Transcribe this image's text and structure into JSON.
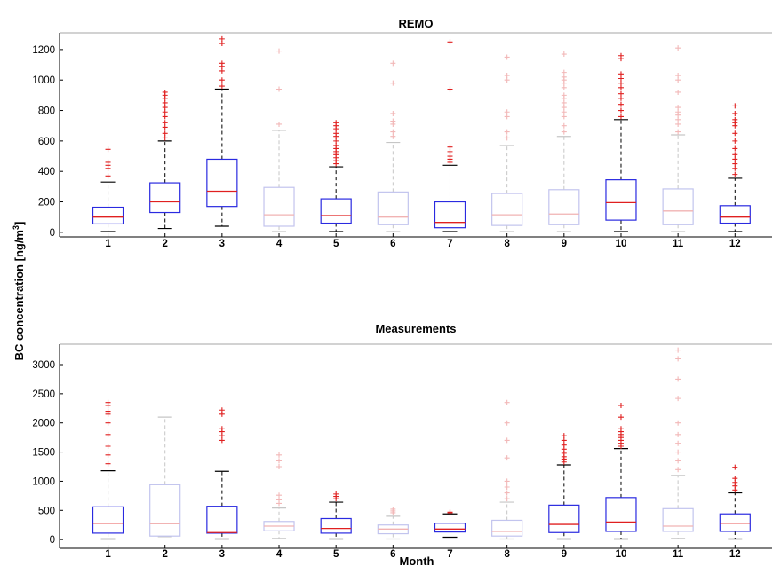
{
  "chart_data": [
    {
      "type": "boxplot",
      "title": "REMO",
      "xlabel": "",
      "ylabel": "BC concentration [ng/m³]",
      "categories": [
        "1",
        "2",
        "3",
        "4",
        "5",
        "6",
        "7",
        "8",
        "9",
        "10",
        "11",
        "12"
      ],
      "ylim": [
        -30,
        1310
      ],
      "yticks": [
        0,
        200,
        400,
        600,
        800,
        1000,
        1200
      ],
      "boxes": [
        {
          "q1": 55,
          "median": 100,
          "q3": 165,
          "whisker_low": 5,
          "whisker_high": 330,
          "outliers": [
            370,
            420,
            440,
            460,
            545
          ]
        },
        {
          "q1": 130,
          "median": 200,
          "q3": 325,
          "whisker_low": 25,
          "whisker_high": 600,
          "outliers": [
            620,
            650,
            690,
            720,
            760,
            790,
            820,
            850,
            880,
            900,
            920
          ]
        },
        {
          "q1": 170,
          "median": 270,
          "q3": 480,
          "whisker_low": 40,
          "whisker_high": 940,
          "outliers": [
            960,
            1000,
            1060,
            1090,
            1110,
            1240,
            1270
          ]
        },
        {
          "q1": 40,
          "median": 115,
          "q3": 295,
          "whisker_low": 5,
          "whisker_high": 670,
          "outliers": [
            710,
            940,
            1190
          ]
        },
        {
          "q1": 60,
          "median": 110,
          "q3": 220,
          "whisker_low": 5,
          "whisker_high": 430,
          "outliers": [
            450,
            470,
            490,
            510,
            530,
            550,
            570,
            600,
            630,
            650,
            680,
            700,
            720
          ]
        },
        {
          "q1": 50,
          "median": 100,
          "q3": 265,
          "whisker_low": 5,
          "whisker_high": 590,
          "outliers": [
            630,
            660,
            710,
            730,
            780,
            980,
            1110
          ]
        },
        {
          "q1": 30,
          "median": 65,
          "q3": 200,
          "whisker_low": 5,
          "whisker_high": 440,
          "outliers": [
            460,
            480,
            500,
            530,
            560,
            940,
            1250
          ]
        },
        {
          "q1": 45,
          "median": 115,
          "q3": 255,
          "whisker_low": 5,
          "whisker_high": 570,
          "outliers": [
            620,
            660,
            760,
            790,
            1000,
            1030,
            1150
          ]
        },
        {
          "q1": 50,
          "median": 120,
          "q3": 280,
          "whisker_low": 5,
          "whisker_high": 630,
          "outliers": [
            660,
            700,
            760,
            790,
            820,
            850,
            880,
            900,
            950,
            980,
            1000,
            1020,
            1050,
            1170
          ]
        },
        {
          "q1": 80,
          "median": 195,
          "q3": 345,
          "whisker_low": 5,
          "whisker_high": 740,
          "outliers": [
            760,
            800,
            840,
            880,
            910,
            950,
            980,
            1010,
            1040,
            1140,
            1160
          ]
        },
        {
          "q1": 50,
          "median": 140,
          "q3": 285,
          "whisker_low": 5,
          "whisker_high": 640,
          "outliers": [
            660,
            710,
            740,
            770,
            790,
            820,
            920,
            1000,
            1030,
            1210
          ]
        },
        {
          "q1": 60,
          "median": 100,
          "q3": 175,
          "whisker_low": 5,
          "whisker_high": 355,
          "outliers": [
            380,
            420,
            450,
            480,
            510,
            550,
            600,
            650,
            700,
            720,
            740,
            780,
            830
          ]
        }
      ]
    },
    {
      "type": "boxplot",
      "title": "Measurements",
      "xlabel": "Month",
      "ylabel": "BC concentration [ng/m³]",
      "categories": [
        "1",
        "2",
        "3",
        "4",
        "5",
        "6",
        "7",
        "8",
        "9",
        "10",
        "11",
        "12"
      ],
      "ylim": [
        -150,
        3350
      ],
      "yticks": [
        0,
        500,
        1000,
        1500,
        2000,
        2500,
        3000
      ],
      "boxes": [
        {
          "q1": 110,
          "median": 280,
          "q3": 560,
          "whisker_low": 10,
          "whisker_high": 1180,
          "outliers": [
            1300,
            1450,
            1600,
            1800,
            2000,
            2150,
            2200,
            2300,
            2350
          ]
        },
        {
          "q1": 60,
          "median": 270,
          "q3": 940,
          "whisker_low": 50,
          "whisker_high": 2100,
          "outliers": []
        },
        {
          "q1": 110,
          "median": 120,
          "q3": 570,
          "whisker_low": 10,
          "whisker_high": 1170,
          "outliers": [
            1700,
            1780,
            1850,
            1900,
            2150,
            2220
          ]
        },
        {
          "q1": 150,
          "median": 230,
          "q3": 310,
          "whisker_low": 20,
          "whisker_high": 540,
          "outliers": [
            620,
            680,
            760,
            1250,
            1350,
            1450
          ]
        },
        {
          "q1": 110,
          "median": 190,
          "q3": 360,
          "whisker_low": 10,
          "whisker_high": 640,
          "outliers": [
            700,
            740,
            780
          ]
        },
        {
          "q1": 100,
          "median": 180,
          "q3": 250,
          "whisker_low": 10,
          "whisker_high": 400,
          "outliers": [
            460,
            490,
            520
          ]
        },
        {
          "q1": 130,
          "median": 180,
          "q3": 280,
          "whisker_low": 40,
          "whisker_high": 440,
          "outliers": [
            460,
            470
          ]
        },
        {
          "q1": 60,
          "median": 140,
          "q3": 330,
          "whisker_low": 10,
          "whisker_high": 640,
          "outliers": [
            700,
            800,
            900,
            1000,
            1400,
            1700,
            2000,
            2350
          ]
        },
        {
          "q1": 120,
          "median": 260,
          "q3": 590,
          "whisker_low": 10,
          "whisker_high": 1280,
          "outliers": [
            1330,
            1380,
            1420,
            1480,
            1550,
            1620,
            1700,
            1780
          ]
        },
        {
          "q1": 140,
          "median": 300,
          "q3": 720,
          "whisker_low": 10,
          "whisker_high": 1560,
          "outliers": [
            1600,
            1650,
            1700,
            1750,
            1800,
            1850,
            1900,
            2100,
            2300
          ]
        },
        {
          "q1": 140,
          "median": 230,
          "q3": 530,
          "whisker_low": 20,
          "whisker_high": 1100,
          "outliers": [
            1200,
            1350,
            1500,
            1650,
            1800,
            2000,
            2420,
            2750,
            3100,
            3250
          ]
        },
        {
          "q1": 140,
          "median": 280,
          "q3": 440,
          "whisker_low": 10,
          "whisker_high": 800,
          "outliers": [
            850,
            920,
            980,
            1050,
            1240
          ]
        }
      ]
    }
  ],
  "colors": {
    "box": "#2a2ae0",
    "box_faint": "#c2c4ee",
    "median": "#e02020",
    "median_faint": "#f1b3b3",
    "whisker": "#000000",
    "whisker_faint": "#c6c6c6",
    "outlier": "#e02020",
    "outlier_faint": "#f2b8b8",
    "axis": "#000000"
  }
}
